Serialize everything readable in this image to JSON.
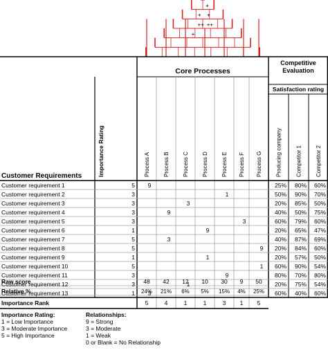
{
  "header": {
    "core_processes": "Core Processes",
    "competitive_line1": "Competitive",
    "competitive_line2": "Evaluation",
    "satisfaction_rating": "Satisfaction rating",
    "customer_requirements": "Customer Requirements",
    "importance_rating": "Importance Rating"
  },
  "processes": [
    "Process A",
    "Process B",
    "Process C",
    "Process D",
    "Process E",
    "Process F",
    "Process G"
  ],
  "competitors": [
    "Producing company",
    "Competitor 1",
    "Competitor 2"
  ],
  "roof_marks": [
    {
      "row": 0,
      "col": 3,
      "mark": "+"
    },
    {
      "row": 1,
      "col": 3,
      "mark": "+"
    },
    {
      "row": 1,
      "col": 4,
      "mark": "+"
    },
    {
      "row": 2,
      "col": 4,
      "mark": "++"
    },
    {
      "row": 2,
      "col": 5,
      "mark": "++"
    },
    {
      "row": 3,
      "col": 4,
      "mark": "+"
    }
  ],
  "requirements": [
    {
      "name": "Customer requirement 1",
      "importance": "5",
      "rel": [
        "9",
        "",
        "",
        "",
        "",
        "",
        ""
      ],
      "ratings": [
        "25%",
        "80%",
        "60%"
      ]
    },
    {
      "name": "Customer requirement 2",
      "importance": "3",
      "rel": [
        "",
        "",
        "",
        "",
        "1",
        "",
        ""
      ],
      "ratings": [
        "50%",
        "90%",
        "70%"
      ]
    },
    {
      "name": "Customer requirement 3",
      "importance": "3",
      "rel": [
        "",
        "",
        "3",
        "",
        "",
        "",
        ""
      ],
      "ratings": [
        "20%",
        "85%",
        "50%"
      ]
    },
    {
      "name": "Customer requirement 4",
      "importance": "3",
      "rel": [
        "",
        "9",
        "",
        "",
        "",
        "",
        ""
      ],
      "ratings": [
        "40%",
        "50%",
        "75%"
      ]
    },
    {
      "name": "Customer requirement 5",
      "importance": "3",
      "rel": [
        "",
        "",
        "",
        "",
        "",
        "3",
        ""
      ],
      "ratings": [
        "60%",
        "79%",
        "60%"
      ]
    },
    {
      "name": "Customer requirement 6",
      "importance": "1",
      "rel": [
        "",
        "",
        "",
        "9",
        "",
        "",
        ""
      ],
      "ratings": [
        "20%",
        "65%",
        "47%"
      ]
    },
    {
      "name": "Customer requirement 7",
      "importance": "5",
      "rel": [
        "",
        "3",
        "",
        "",
        "",
        "",
        ""
      ],
      "ratings": [
        "40%",
        "87%",
        "69%"
      ]
    },
    {
      "name": "Customer requirement 8",
      "importance": "5",
      "rel": [
        "",
        "",
        "",
        "",
        "",
        "",
        "9"
      ],
      "ratings": [
        "20%",
        "84%",
        "60%"
      ]
    },
    {
      "name": "Customer requirement 9",
      "importance": "1",
      "rel": [
        "",
        "",
        "",
        "1",
        "",
        "",
        ""
      ],
      "ratings": [
        "20%",
        "57%",
        "50%"
      ]
    },
    {
      "name": "Customer requirement 10",
      "importance": "5",
      "rel": [
        "",
        "",
        "",
        "",
        "",
        "",
        "1"
      ],
      "ratings": [
        "60%",
        "90%",
        "54%"
      ]
    },
    {
      "name": "Customer requirement 11",
      "importance": "3",
      "rel": [
        "",
        "",
        "",
        "",
        "9",
        "",
        ""
      ],
      "ratings": [
        "80%",
        "70%",
        "80%"
      ]
    },
    {
      "name": "Customer requirement 12",
      "importance": "3",
      "rel": [
        "",
        "",
        "1",
        "",
        "",
        "",
        ""
      ],
      "ratings": [
        "20%",
        "75%",
        "54%"
      ]
    },
    {
      "name": "Customer requirement 13",
      "importance": "1",
      "rel": [
        "3",
        "",
        "",
        "",
        "",
        "",
        ""
      ],
      "ratings": [
        "60%",
        "40%",
        "60%"
      ]
    }
  ],
  "footer": {
    "raw_score_label": "Raw score",
    "raw_score": [
      "48",
      "42",
      "12",
      "10",
      "30",
      "9",
      "50"
    ],
    "relative_label": "Relative %",
    "relative": [
      "24%",
      "21%",
      "6%",
      "5%",
      "15%",
      "4%",
      "25%"
    ],
    "rank_label": "Importance Rank",
    "rank": [
      "5",
      "4",
      "1",
      "1",
      "3",
      "1",
      "5"
    ]
  },
  "legend": {
    "importance_title": "Importance Rating:",
    "importance_items": [
      "1 = Low Importance",
      "3 = Moderate Importance",
      "5 = High Importance"
    ],
    "relationships_title": "Relationships:",
    "relationships_items": [
      "9 = Strong",
      "3 = Moderate",
      "1 = Weak",
      "0 or Blank = No Relationship"
    ]
  },
  "colors": {
    "roof_red": "#d42020",
    "grid_gray": "#a0a0a0",
    "border": "#000000"
  }
}
